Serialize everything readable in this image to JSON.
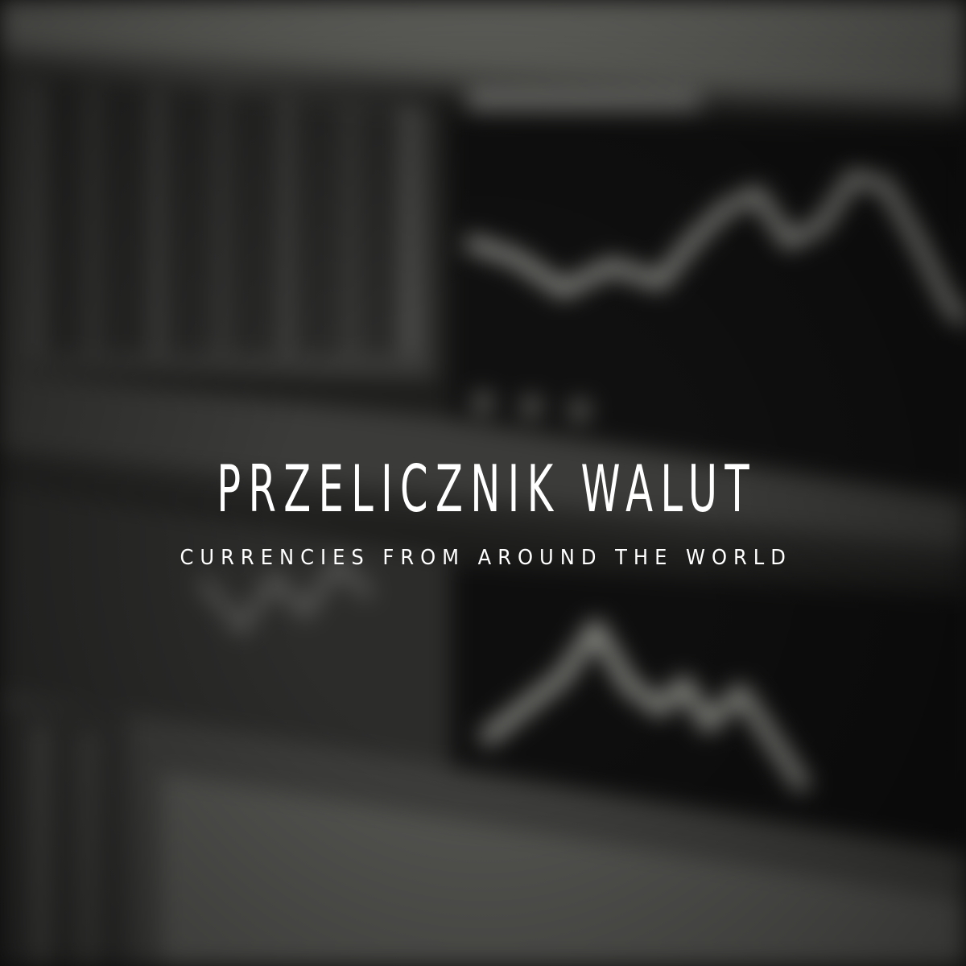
{
  "hero": {
    "title": "PRZELICZNIK WALUT",
    "subtitle": "CURRENCIES FROM AROUND THE WORLD"
  },
  "background": {
    "description_icon": "blurred-stock-ticker-photo",
    "tone": "grayscale"
  },
  "colors": {
    "text": "#ffffff",
    "background_dark": "#141414",
    "background_light": "#8a8a85"
  }
}
